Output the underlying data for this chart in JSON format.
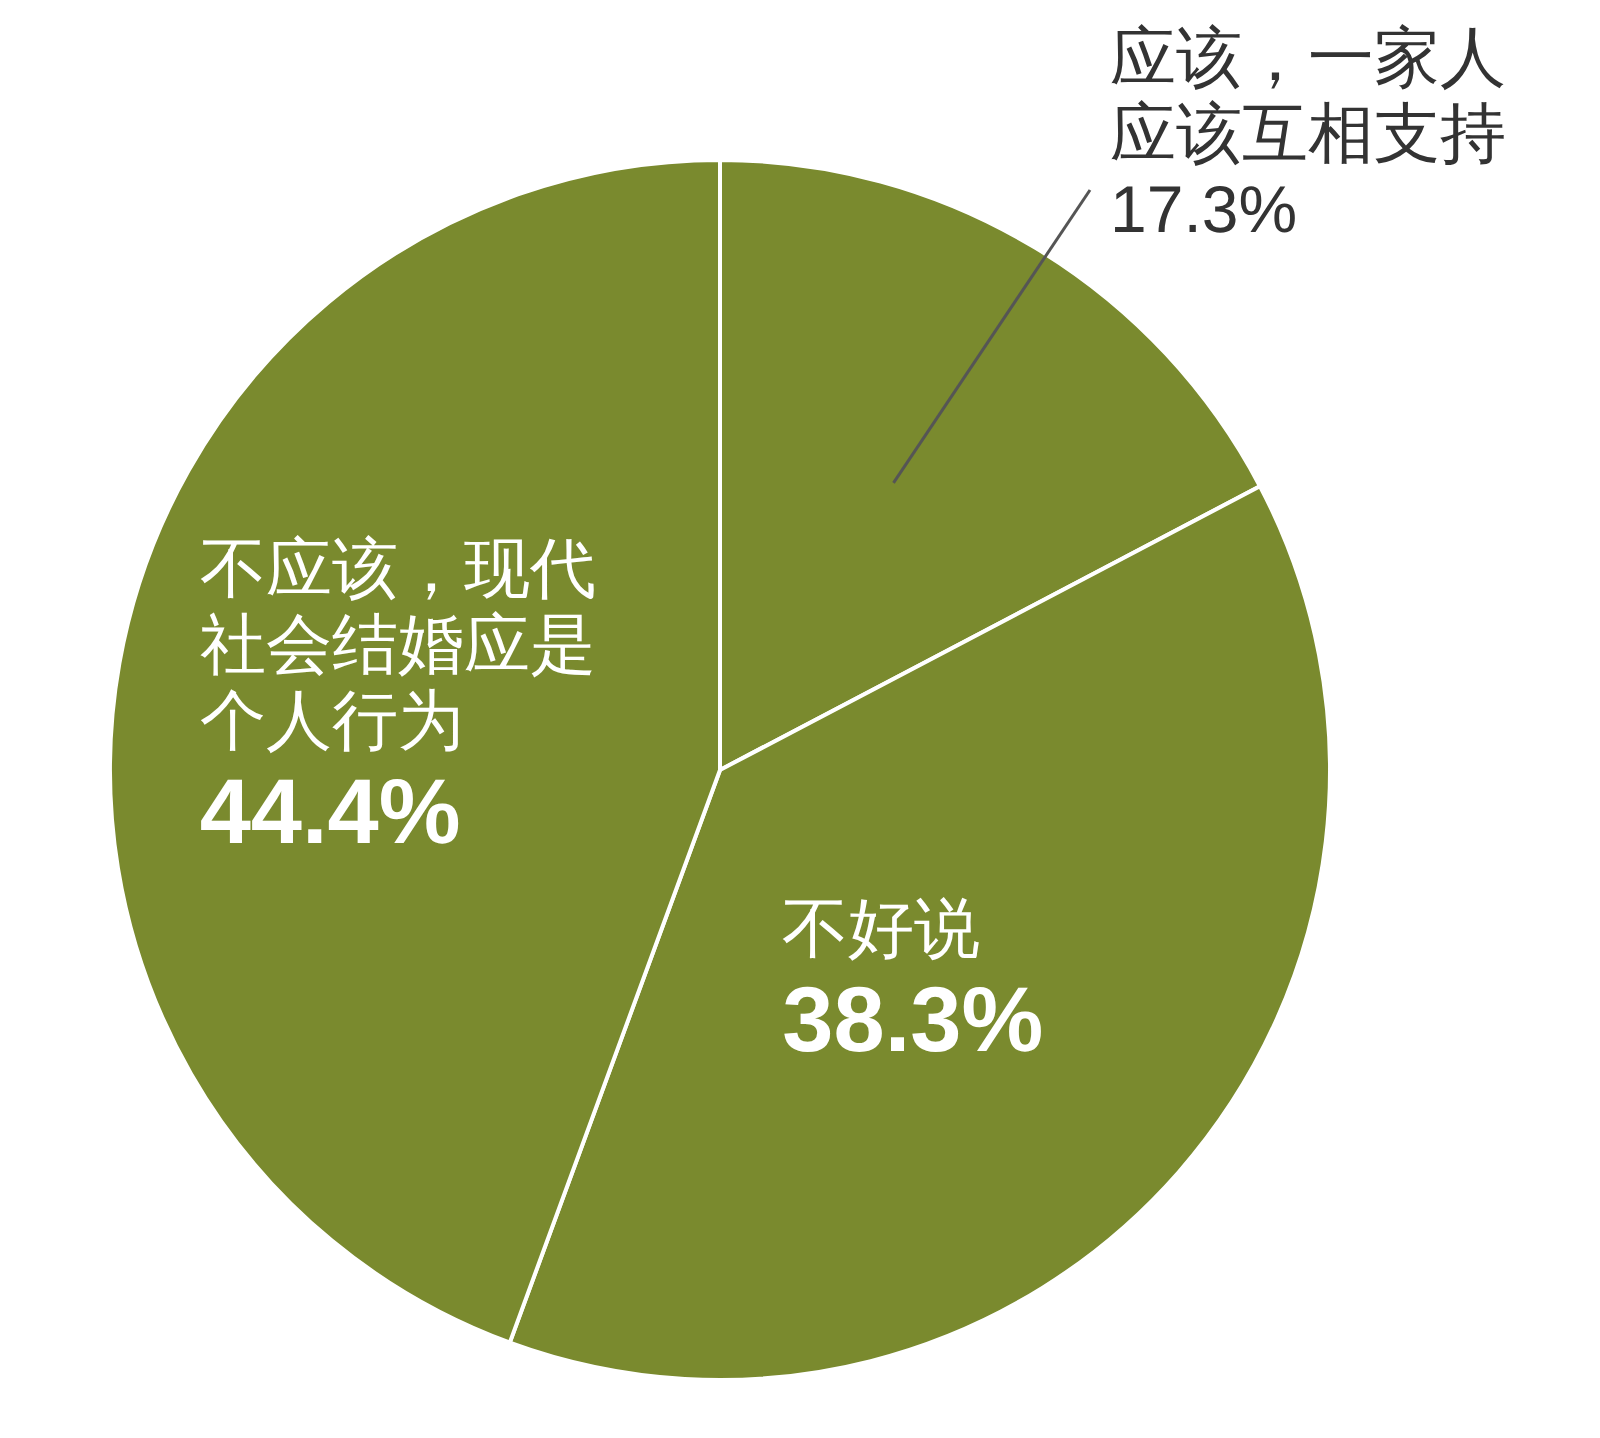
{
  "chart_data": {
    "type": "pie",
    "categories": [
      "应该，一家人应该互相支持",
      "不好说",
      "不应该，现代社会结婚应是个人行为"
    ],
    "values": [
      17.3,
      38.3,
      44.4
    ],
    "colors": [
      "#7a8a2e",
      "#7a8a2e",
      "#7a8a2e"
    ],
    "value_labels": [
      "17.3%",
      "38.3%",
      "44.4%"
    ]
  }
}
